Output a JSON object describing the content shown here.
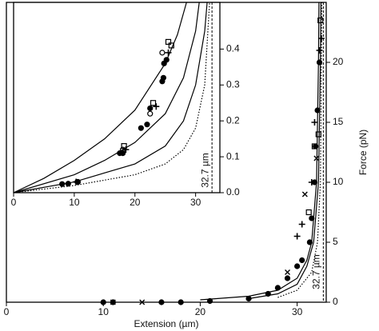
{
  "chart_data": [
    {
      "type": "scatter",
      "xlabel": "Extension (µm)",
      "ylabel": "Force (pN)",
      "xlim": [
        0,
        33
      ],
      "ylim": [
        0,
        25
      ],
      "xticks": [
        0,
        10,
        20,
        30
      ],
      "yticks": [
        0,
        5,
        10,
        15,
        20
      ],
      "vline": 32.7,
      "annotation": "32.7 µm",
      "series": [
        {
          "color": "#000",
          "marker": "circle-filled",
          "x": [
            10,
            11,
            16,
            18,
            21,
            25,
            27,
            28,
            29,
            30,
            30.5,
            31.3,
            31.5,
            31.8,
            31.9,
            32.1,
            32.3
          ],
          "values": [
            0,
            0,
            0,
            0,
            0.1,
            0.3,
            0.7,
            1.2,
            2,
            3,
            3.5,
            5,
            7,
            10,
            13,
            16,
            20
          ]
        },
        {
          "color": "#000",
          "marker": "square-open",
          "x": [
            31.2,
            31.8,
            32.2,
            32.4
          ],
          "values": [
            7.5,
            13,
            14,
            23.5
          ]
        },
        {
          "color": "#000",
          "marker": "plus",
          "x": [
            30,
            30.5,
            31.5,
            31.8,
            32.3,
            32.5
          ],
          "values": [
            5.5,
            6.5,
            10,
            15,
            21,
            22
          ]
        },
        {
          "color": "#000",
          "marker": "cross",
          "x": [
            11,
            14,
            29,
            30.8,
            32
          ],
          "values": [
            0,
            0,
            2.5,
            9,
            12
          ]
        },
        {
          "color": "#000",
          "style": "solid",
          "x": [
            20,
            25,
            28,
            30,
            31,
            31.5,
            32,
            32.2,
            32.25
          ],
          "values": [
            0.2,
            0.5,
            1,
            2,
            3.5,
            5,
            10,
            20,
            25
          ]
        },
        {
          "color": "#000",
          "style": "solid",
          "x": [
            25,
            28,
            30,
            31,
            31.7,
            32.2,
            32.4,
            32.45
          ],
          "values": [
            0.3,
            0.7,
            1.5,
            3,
            5,
            10,
            20,
            25
          ]
        },
        {
          "color": "#000",
          "style": "dotted",
          "x": [
            28,
            30,
            31.5,
            32.1,
            32.4,
            32.55
          ],
          "values": [
            0.4,
            1,
            2.5,
            5,
            10,
            25
          ]
        }
      ]
    },
    {
      "type": "scatter",
      "xlim": [
        0,
        34
      ],
      "ylim": [
        0,
        0.53
      ],
      "xticks": [
        0,
        10,
        20,
        30
      ],
      "yticks": [
        {
          "value": 0,
          "label": "0.0"
        },
        0.1,
        0.2,
        0.3,
        0.4
      ],
      "vline": 32.7,
      "annotation": "32.7 µm",
      "series": [
        {
          "color": "#000",
          "marker": "circle-filled",
          "x": [
            8,
            9,
            10.5,
            17.5,
            18,
            21,
            22,
            22.5,
            24.5,
            24.7,
            24.8,
            25.2
          ],
          "values": [
            0.024,
            0.025,
            0.03,
            0.11,
            0.11,
            0.18,
            0.19,
            0.235,
            0.31,
            0.32,
            0.36,
            0.37
          ]
        },
        {
          "color": "#000",
          "marker": "square-open",
          "x": [
            18.2,
            23,
            25.5,
            26
          ],
          "values": [
            0.13,
            0.25,
            0.42,
            0.41
          ]
        },
        {
          "color": "#000",
          "marker": "plus",
          "x": [
            10.3,
            18.5,
            23.5,
            25.5
          ],
          "values": [
            0.03,
            0.12,
            0.24,
            0.39
          ]
        },
        {
          "color": "#000",
          "marker": "circle-open",
          "x": [
            10.6,
            18,
            22.5,
            24.5
          ],
          "values": [
            0.03,
            0.12,
            0.22,
            0.39
          ]
        },
        {
          "color": "#000",
          "style": "solid",
          "x": [
            0,
            5,
            10,
            15,
            20,
            25,
            27,
            28.5
          ],
          "values": [
            0,
            0.04,
            0.09,
            0.15,
            0.23,
            0.36,
            0.44,
            0.53
          ]
        },
        {
          "color": "#000",
          "style": "solid",
          "x": [
            0,
            10,
            15,
            20,
            25,
            28,
            30,
            30.6
          ],
          "values": [
            0,
            0.05,
            0.09,
            0.14,
            0.22,
            0.32,
            0.45,
            0.53
          ]
        },
        {
          "color": "#000",
          "style": "solid",
          "x": [
            0,
            10,
            20,
            25,
            28,
            30,
            31.5,
            31.9
          ],
          "values": [
            0,
            0.03,
            0.08,
            0.13,
            0.2,
            0.3,
            0.45,
            0.53
          ]
        },
        {
          "color": "#000",
          "style": "dotted",
          "x": [
            0,
            10,
            20,
            25,
            28,
            30,
            31.5,
            32.3
          ],
          "values": [
            0,
            0.02,
            0.05,
            0.08,
            0.12,
            0.18,
            0.3,
            0.53
          ]
        }
      ]
    }
  ]
}
